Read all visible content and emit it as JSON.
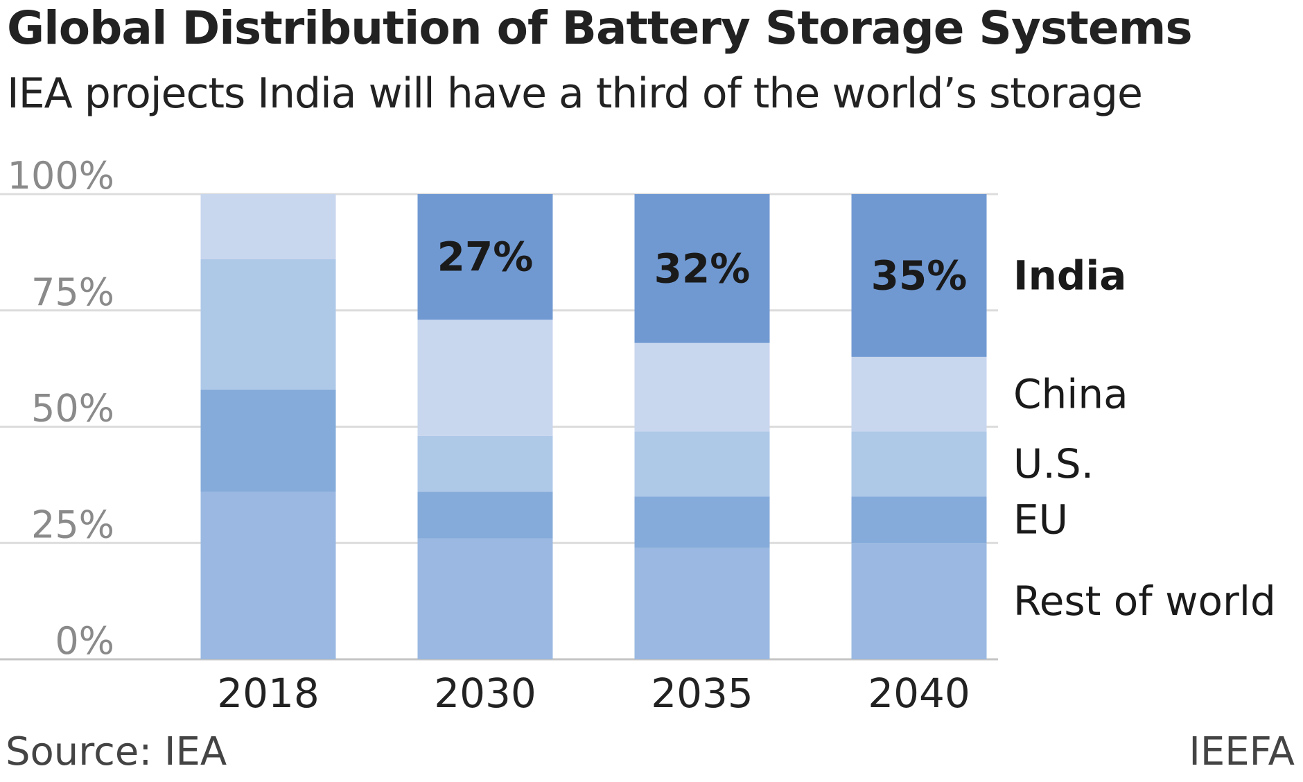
{
  "title": "Global Distribution of Battery Storage Systems",
  "subtitle": "IEA projects India will have a third of the world’s storage",
  "source": "Source: IEA",
  "credit": "IEEFA",
  "chart_data": {
    "type": "bar",
    "stacked": true,
    "categories": [
      "2018",
      "2030",
      "2035",
      "2040"
    ],
    "ylim": [
      0,
      100
    ],
    "yticks": [
      "0%",
      "25%",
      "50%",
      "75%",
      "100%"
    ],
    "grid": true,
    "legend": "right-side labels",
    "series": [
      {
        "name": "Rest of world",
        "values": [
          36,
          26,
          24,
          25
        ],
        "color": "#9ab8e1",
        "label_bold": false
      },
      {
        "name": "EU",
        "values": [
          22,
          10,
          11,
          10
        ],
        "color": "#85abda",
        "label_bold": false
      },
      {
        "name": "U.S.",
        "values": [
          28,
          12,
          14,
          14
        ],
        "color": "#aec8e8",
        "label_bold": false
      },
      {
        "name": "China",
        "values": [
          14,
          25,
          19,
          16
        ],
        "color": "#c8d6ee",
        "label_bold": false
      },
      {
        "name": "India",
        "values": [
          0,
          27,
          32,
          35
        ],
        "color": "#7099d2",
        "label_bold": true,
        "data_labels": [
          "",
          "27%",
          "32%",
          "35%"
        ]
      }
    ]
  }
}
